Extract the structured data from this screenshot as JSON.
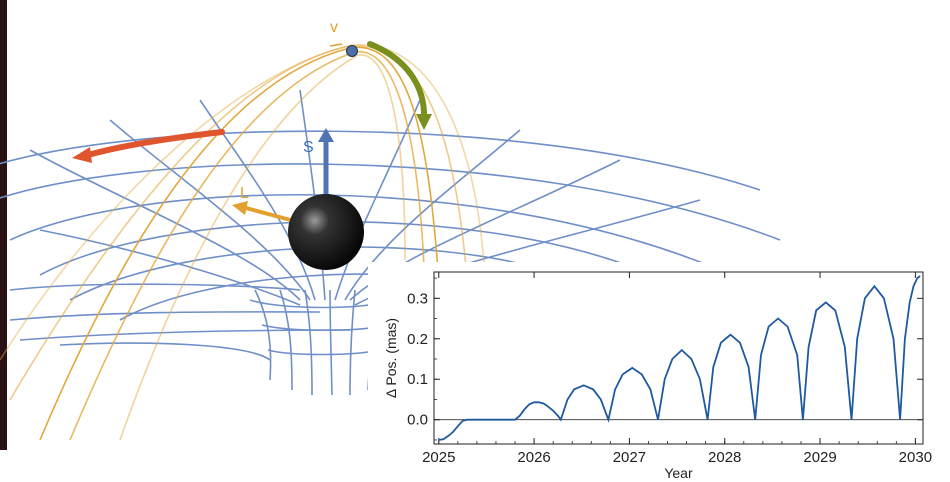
{
  "illustration": {
    "labels": {
      "velocity": "v",
      "spin": "S",
      "angular_momentum": "L"
    },
    "colors": {
      "grid": "#6f8fc8",
      "orbit": "#e3a83d",
      "spin_arrow": "#4f73b3",
      "angular_momentum_arrow": "#e4a02e",
      "velocity_arrow": "#7a8f1e",
      "precession_arrow": "#e0552e",
      "velocity_label": "#e4a02e",
      "spin_label": "#3d6fb5",
      "angular_momentum_label": "#e4a02e"
    }
  },
  "chart_data": {
    "type": "line",
    "title": "",
    "xlabel": "Year",
    "ylabel": "Δ Pos. (mas)",
    "xlim": [
      2024.95,
      2030.08
    ],
    "ylim": [
      -0.06,
      0.365
    ],
    "xticks": [
      2025,
      2026,
      2027,
      2028,
      2029,
      2030
    ],
    "yticks": [
      0.0,
      0.1,
      0.2,
      0.3
    ],
    "ytick_labels": [
      "0.0",
      "0.1",
      "0.2",
      "0.3"
    ],
    "zero_line": true,
    "grid": false,
    "line_color": "#1f5a9e",
    "series": [
      {
        "x": [
          2025.0,
          2025.05,
          2025.1,
          2025.15,
          2025.2,
          2025.25,
          2025.3,
          2025.5,
          2025.8,
          2025.85,
          2025.9,
          2025.95,
          2026.0,
          2026.05,
          2026.1,
          2026.15,
          2026.2,
          2026.25,
          2026.28,
          2026.35,
          2026.42,
          2026.52,
          2026.62,
          2026.7,
          2026.78,
          2026.85,
          2026.93,
          2027.03,
          2027.13,
          2027.22,
          2027.3,
          2027.37,
          2027.45,
          2027.55,
          2027.65,
          2027.74,
          2027.82,
          2027.88,
          2027.96,
          2028.06,
          2028.16,
          2028.25,
          2028.32,
          2028.38,
          2028.46,
          2028.56,
          2028.66,
          2028.76,
          2028.82,
          2028.88,
          2028.96,
          2029.06,
          2029.16,
          2029.26,
          2029.33,
          2029.39,
          2029.47,
          2029.57,
          2029.67,
          2029.77,
          2029.84,
          2029.89,
          2029.94,
          2029.98,
          2030.02,
          2030.05
        ],
        "values": [
          -0.05,
          -0.048,
          -0.04,
          -0.03,
          -0.016,
          -0.003,
          0.0,
          0.0,
          0.0,
          0.01,
          0.026,
          0.038,
          0.043,
          0.043,
          0.04,
          0.032,
          0.022,
          0.01,
          0.0,
          0.05,
          0.075,
          0.085,
          0.075,
          0.05,
          0.0,
          0.075,
          0.112,
          0.128,
          0.112,
          0.075,
          0.0,
          0.1,
          0.15,
          0.172,
          0.15,
          0.1,
          0.0,
          0.13,
          0.19,
          0.21,
          0.19,
          0.13,
          0.0,
          0.16,
          0.23,
          0.25,
          0.23,
          0.16,
          0.0,
          0.18,
          0.27,
          0.29,
          0.27,
          0.18,
          0.0,
          0.2,
          0.3,
          0.33,
          0.3,
          0.2,
          0.0,
          0.2,
          0.29,
          0.33,
          0.35,
          0.355
        ]
      }
    ]
  }
}
